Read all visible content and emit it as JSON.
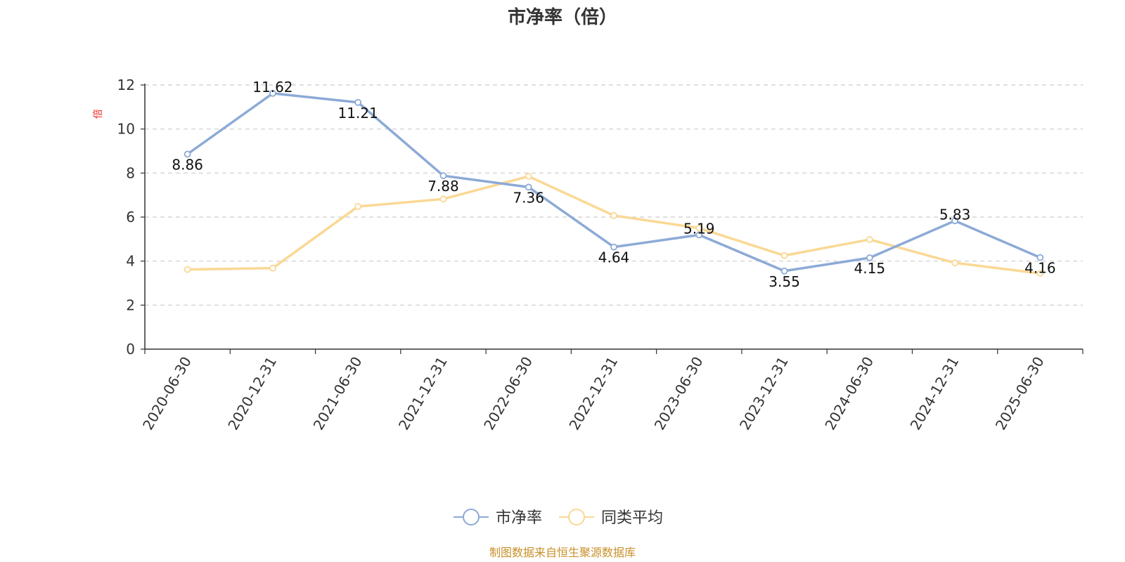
{
  "chart_data": {
    "type": "line",
    "title": "市净率（倍）",
    "ylabel": "倍",
    "categories": [
      "2020-06-30",
      "2020-12-31",
      "2021-06-30",
      "2021-12-31",
      "2022-06-30",
      "2022-12-31",
      "2023-06-30",
      "2023-12-31",
      "2024-06-30",
      "2024-12-31",
      "2025-06-30"
    ],
    "ylim": [
      0,
      12
    ],
    "yticks": [
      0,
      2,
      4,
      6,
      8,
      10,
      12
    ],
    "grid": true,
    "legend_position": "bottom",
    "series": [
      {
        "name": "市净率",
        "color": "#8caad6",
        "values": [
          8.86,
          11.62,
          11.21,
          7.88,
          7.36,
          4.64,
          5.19,
          3.55,
          4.15,
          5.83,
          4.16
        ],
        "labels": [
          "8.86",
          "11.62",
          "11.21",
          "7.88",
          "7.36",
          "4.64",
          "5.19",
          "3.55",
          "4.15",
          "5.83",
          "4.16"
        ]
      },
      {
        "name": "同类平均",
        "color": "#fad894",
        "values": [
          3.62,
          3.68,
          6.48,
          6.82,
          7.85,
          6.07,
          5.5,
          4.25,
          4.98,
          3.92,
          3.44
        ]
      }
    ]
  },
  "footer": {
    "source_text": "制图数据来自恒生聚源数据库"
  }
}
